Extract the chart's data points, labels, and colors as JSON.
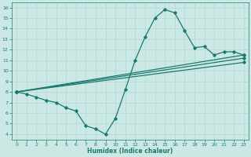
{
  "xlabel": "Humidex (Indice chaleur)",
  "bg_color": "#cce8e5",
  "line_color": "#1a7a6e",
  "grid_color": "#b0d8d4",
  "xlim": [
    -0.5,
    23.5
  ],
  "ylim": [
    3.5,
    16.5
  ],
  "xticks": [
    0,
    1,
    2,
    3,
    4,
    5,
    6,
    7,
    8,
    9,
    10,
    11,
    12,
    13,
    14,
    15,
    16,
    17,
    18,
    19,
    20,
    21,
    22,
    23
  ],
  "yticks": [
    4,
    5,
    6,
    7,
    8,
    9,
    10,
    11,
    12,
    13,
    14,
    15,
    16
  ],
  "main_line": {
    "x": [
      0,
      1,
      2,
      3,
      4,
      5,
      6,
      7,
      8,
      9,
      10,
      11,
      12,
      13,
      14,
      15,
      16,
      17,
      18,
      19,
      20,
      21,
      22,
      23
    ],
    "y": [
      8,
      7.8,
      7.5,
      7.2,
      7.0,
      6.5,
      6.2,
      4.8,
      4.5,
      4.0,
      5.5,
      8.2,
      11.0,
      13.2,
      15.0,
      15.8,
      15.5,
      13.8,
      12.2,
      12.3,
      11.5,
      11.8,
      11.8,
      11.5
    ]
  },
  "straight_lines": [
    {
      "x": [
        0,
        23
      ],
      "y": [
        8.0,
        11.5
      ]
    },
    {
      "x": [
        0,
        23
      ],
      "y": [
        8.0,
        11.2
      ]
    },
    {
      "x": [
        0,
        23
      ],
      "y": [
        8.0,
        10.8
      ]
    }
  ]
}
